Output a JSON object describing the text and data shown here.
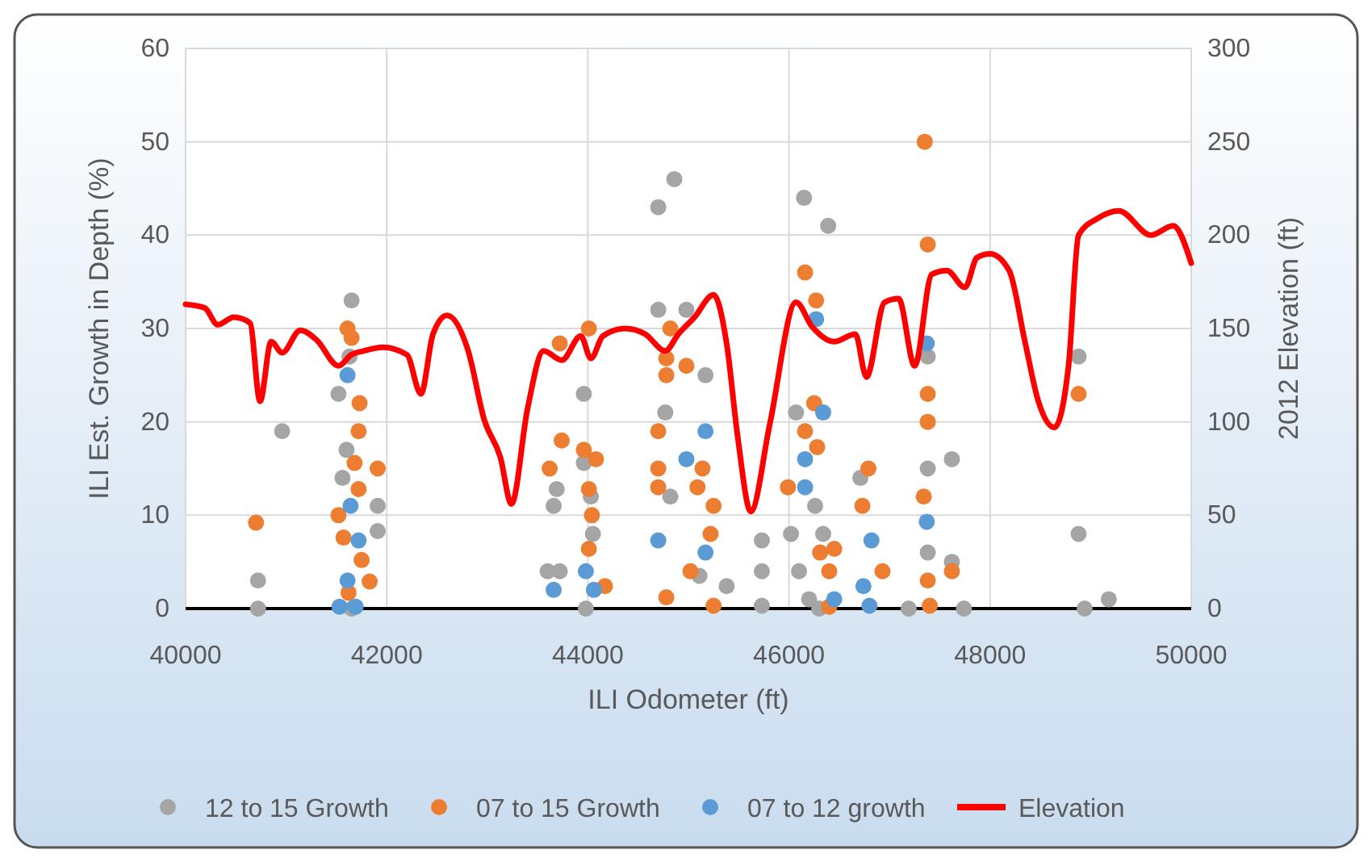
{
  "chart_data": {
    "type": "scatter",
    "xlabel": "ILI Odometer (ft)",
    "ylabel": "ILI Est. Growth in Depth (%)",
    "y2label": "2012 Elevation (ft)",
    "xlim": [
      40000,
      50000
    ],
    "xticks": [
      40000,
      42000,
      44000,
      46000,
      48000,
      50000
    ],
    "ylim": [
      0,
      60
    ],
    "yticks": [
      0,
      10,
      20,
      30,
      40,
      50,
      60
    ],
    "y2lim": [
      0,
      300
    ],
    "y2ticks": [
      0,
      50,
      100,
      150,
      200,
      250,
      300
    ],
    "grid": true,
    "legend": "bottom",
    "series": [
      {
        "name": "12 to 15 Growth",
        "marker": "circle",
        "color": "#a5a5a5",
        "x": [
          40720,
          40720,
          40960,
          41650,
          41520,
          41630,
          41910,
          41910,
          41560,
          41600,
          41650,
          43690,
          43660,
          43720,
          43600,
          43960,
          43960,
          44030,
          44050,
          43980,
          44860,
          44700,
          44700,
          44980,
          45170,
          44770,
          44820,
          45110,
          45380,
          45730,
          45730,
          45730,
          46150,
          46390,
          46070,
          46020,
          46100,
          46260,
          46340,
          46200,
          46300,
          46710,
          47190,
          47380,
          47380,
          47380,
          47620,
          47620,
          47740,
          48880,
          48880,
          48940,
          49180
        ],
        "values": [
          0,
          3,
          19,
          33,
          23,
          27,
          11,
          8.3,
          14,
          17,
          0,
          12.8,
          11,
          4,
          4,
          23,
          15.6,
          12,
          8,
          0,
          46,
          43,
          32,
          32,
          25,
          21,
          12,
          3.5,
          2.4,
          7.3,
          4,
          0.3,
          44,
          41,
          21,
          8,
          4,
          11,
          8,
          1,
          0,
          14,
          0,
          27,
          15,
          6,
          16,
          5,
          0,
          27,
          8,
          0,
          1
        ]
      },
      {
        "name": "07 to 15 Growth",
        "marker": "circle",
        "color": "#ed7d31",
        "x": [
          40700,
          41610,
          41650,
          41730,
          41720,
          41910,
          41680,
          41720,
          41520,
          41570,
          41750,
          41830,
          41620,
          43720,
          44010,
          43740,
          43620,
          43960,
          44080,
          44010,
          44040,
          44010,
          44170,
          44820,
          44780,
          44780,
          44980,
          44700,
          44700,
          44700,
          45140,
          45090,
          45250,
          45220,
          45020,
          44780,
          45250,
          46160,
          46270,
          46160,
          45990,
          46450,
          46250,
          46280,
          46310,
          46400,
          46400,
          46790,
          46730,
          46930,
          47350,
          47380,
          47380,
          47380,
          47340,
          47380,
          47400,
          47620,
          48880
        ],
        "values": [
          9.2,
          30,
          29,
          22,
          19,
          15,
          15.6,
          12.8,
          10,
          7.6,
          5.2,
          2.9,
          1.7,
          28.4,
          30,
          18,
          15,
          17,
          16,
          12.8,
          10,
          6.4,
          2.4,
          30,
          26.8,
          25,
          26,
          19,
          15,
          13,
          15,
          13,
          11,
          8,
          4,
          1.2,
          0.3,
          36,
          33,
          19,
          13,
          6.4,
          22,
          17.3,
          6,
          4,
          0.2,
          15,
          11,
          4,
          50,
          39,
          23,
          20,
          12,
          3,
          0.3,
          4,
          23
        ]
      },
      {
        "name": "07 to 12 growth",
        "marker": "circle",
        "color": "#5b9bd5",
        "x": [
          41610,
          41640,
          41720,
          41610,
          41530,
          41690,
          43660,
          43980,
          44060,
          45170,
          44980,
          44700,
          45170,
          46340,
          46160,
          46160,
          46270,
          46450,
          46820,
          46740,
          46800,
          47370,
          47370
        ],
        "values": [
          25,
          11,
          7.3,
          3,
          0.2,
          0.2,
          2,
          4,
          2,
          19,
          16,
          7.3,
          6,
          21,
          16,
          13,
          31,
          1,
          7.3,
          2.4,
          0.3,
          28.4,
          9.3
        ]
      },
      {
        "name": "Elevation",
        "type": "line",
        "axis": "y2",
        "marker": "none",
        "line_style": "solid",
        "color": "#ff0000",
        "x": [
          40000,
          40190,
          40320,
          40480,
          40640,
          40740,
          40850,
          40960,
          41140,
          41300,
          41520,
          41650,
          41770,
          41960,
          42200,
          42340,
          42460,
          42600,
          42810,
          42970,
          43130,
          43240,
          43400,
          43560,
          43740,
          43930,
          44030,
          44150,
          44370,
          44570,
          44770,
          44900,
          45060,
          45250,
          45380,
          45490,
          45620,
          45810,
          46070,
          46230,
          46450,
          46660,
          46770,
          46950,
          47090,
          47250,
          47420,
          47570,
          47750,
          47870,
          48000,
          48190,
          48350,
          48480,
          48640,
          48780,
          48880,
          49070,
          49280,
          49600,
          49820,
          50000
        ],
        "values": [
          163,
          161,
          152,
          156,
          153,
          111,
          143,
          137,
          149,
          144,
          130,
          136,
          138,
          140,
          136,
          115,
          147,
          157,
          138,
          101,
          81,
          56,
          107,
          138,
          133,
          146,
          134,
          146,
          150,
          147,
          138,
          147,
          156,
          168,
          142,
          92,
          52,
          99,
          164,
          151,
          143,
          147,
          124,
          164,
          166,
          130,
          179,
          181,
          172,
          188,
          190,
          181,
          142,
          111,
          97,
          130,
          200,
          209,
          213,
          200,
          205,
          185
        ]
      }
    ]
  }
}
